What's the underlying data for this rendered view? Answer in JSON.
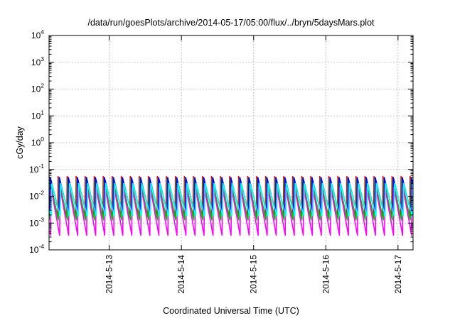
{
  "chart_data": {
    "type": "line",
    "title": "/data/run/goesPlots/archive/2014-05-17/05:00/flux/../bryn/5daysMars.plot",
    "xlabel": "Coordinated Universal Time (UTC)",
    "ylabel": "cGy/day",
    "y_scale": "log",
    "ylim": [
      0.0001,
      10000
    ],
    "xlim": [
      "2014-05-12T04:00",
      "2014-05-17T05:00"
    ],
    "x_ticks": [
      "2014-5-13",
      "2014-5-14",
      "2014-5-15",
      "2014-5-16",
      "2014-5-17"
    ],
    "y_ticks": [
      {
        "base": "10",
        "exp": "-4"
      },
      {
        "base": "10",
        "exp": "-3"
      },
      {
        "base": "10",
        "exp": "-2"
      },
      {
        "base": "10",
        "exp": "-1"
      },
      {
        "base": "10",
        "exp": "0"
      },
      {
        "base": "10",
        "exp": "1"
      },
      {
        "base": "10",
        "exp": "2"
      },
      {
        "base": "10",
        "exp": "3"
      },
      {
        "base": "10",
        "exp": "4"
      }
    ],
    "grid": true,
    "legend": "none",
    "cycle_period_hours": 3,
    "series": [
      {
        "color": "#ff0000",
        "peak": 0.055,
        "trough": 0.0016
      },
      {
        "color": "#00c000",
        "peak": 0.045,
        "trough": 0.0013
      },
      {
        "color": "#0000ff",
        "peak": 0.05,
        "trough": 0.0025
      },
      {
        "color": "#ff00ff",
        "peak": 0.022,
        "trough": 0.00035
      },
      {
        "color": "#00ffff",
        "peak": 0.03,
        "trough": 0.0018
      }
    ]
  }
}
